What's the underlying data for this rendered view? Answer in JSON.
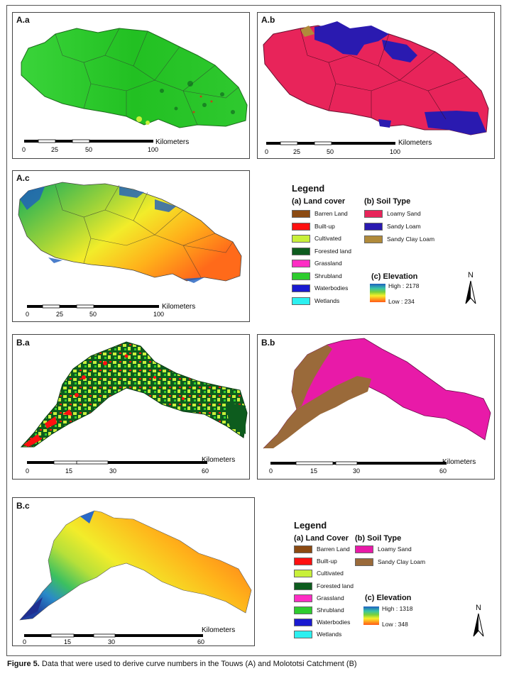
{
  "caption": {
    "label": "Figure 5.",
    "text": " Data that were used to derive curve numbers in the Touws (A) and Molototsi Catchment (B)"
  },
  "panels": {
    "Aa": {
      "label": "A.a"
    },
    "Ab": {
      "label": "A.b"
    },
    "Ac": {
      "label": "A.c"
    },
    "Ba": {
      "label": "B.a"
    },
    "Bb": {
      "label": "B.b"
    },
    "Bc": {
      "label": "B.c"
    }
  },
  "scalebar_A": {
    "unit": "Kilometers",
    "ticks": [
      "0",
      "25",
      "50",
      "100"
    ]
  },
  "scalebar_B": {
    "unit": "Kilometers",
    "ticks": [
      "0",
      "15",
      "30",
      "60"
    ]
  },
  "legendA": {
    "title": "Legend",
    "landcover_title": "(a) Land cover",
    "landcover": [
      {
        "label": "Barren Land",
        "color": "#8b4a12"
      },
      {
        "label": "Built-up",
        "color": "#ff1010"
      },
      {
        "label": "Cultivated",
        "color": "#c8f03a"
      },
      {
        "label": "Forested land",
        "color": "#0d5c1e"
      },
      {
        "label": "Grassland",
        "color": "#ff2dc4"
      },
      {
        "label": "Shrubland",
        "color": "#2ecc2e"
      },
      {
        "label": "Waterbodies",
        "color": "#1a1ad0"
      },
      {
        "label": "Wetlands",
        "color": "#2cf0f0"
      }
    ],
    "soil_title": "(b) Soil Type",
    "soil": [
      {
        "label": "Loamy Sand",
        "color": "#e8245a"
      },
      {
        "label": "Sandy Loam",
        "color": "#2a1ab0"
      },
      {
        "label": "Sandy Clay Loam",
        "color": "#b08a3a"
      }
    ],
    "elev_title": "(c) Elevation",
    "elev_high": "High : 2178",
    "elev_low": "Low : 234",
    "north": "N"
  },
  "legendB": {
    "title": "Legend",
    "landcover_title": "(a) Land Cover",
    "landcover": [
      {
        "label": "Barren Land",
        "color": "#8b4a12"
      },
      {
        "label": "Built-up",
        "color": "#ff1010"
      },
      {
        "label": "Cultivated",
        "color": "#c8f03a"
      },
      {
        "label": "Forested land",
        "color": "#0d5c1e"
      },
      {
        "label": "Grassland",
        "color": "#ff2dc4"
      },
      {
        "label": "Shrubland",
        "color": "#2ecc2e"
      },
      {
        "label": "Waterbodies",
        "color": "#1a1ad0"
      },
      {
        "label": "Wetlands",
        "color": "#2cf0f0"
      }
    ],
    "soil_title": "(b) Soil Type",
    "soil": [
      {
        "label": "Loamy Sand",
        "color": "#e81aa8"
      },
      {
        "label": "Sandy Clay Loam",
        "color": "#9a6a3a"
      }
    ],
    "elev_title": "(c) Elevation",
    "elev_high": "High : 1318",
    "elev_low": "Low : 348",
    "north": "N"
  }
}
